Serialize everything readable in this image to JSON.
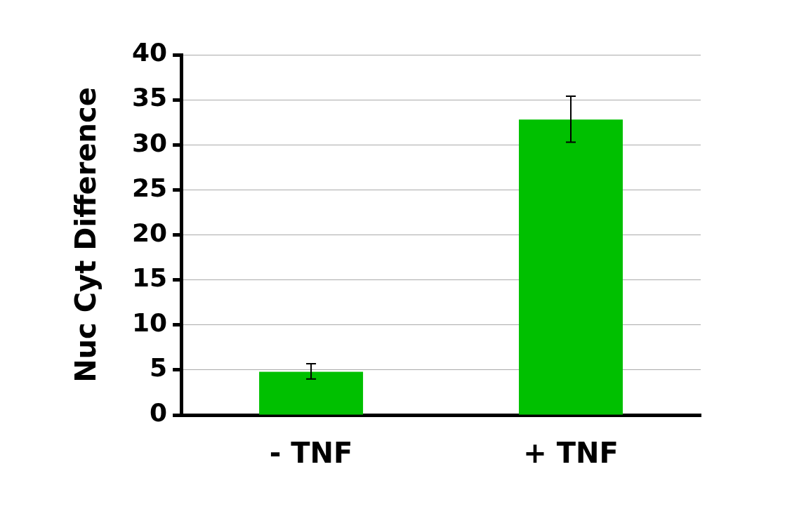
{
  "chart_data": {
    "type": "bar",
    "ylabel": "Nuc Cyt Difference",
    "categories": [
      "- TNF",
      "+ TNF"
    ],
    "values": [
      4.8,
      32.8
    ],
    "errors": [
      [
        4.0,
        5.7
      ],
      [
        30.3,
        35.4
      ]
    ],
    "color": "#00c000",
    "ylim": [
      0,
      40
    ],
    "yticks": [
      0,
      5,
      10,
      15,
      20,
      25,
      30,
      35,
      40
    ],
    "grid": "y"
  }
}
